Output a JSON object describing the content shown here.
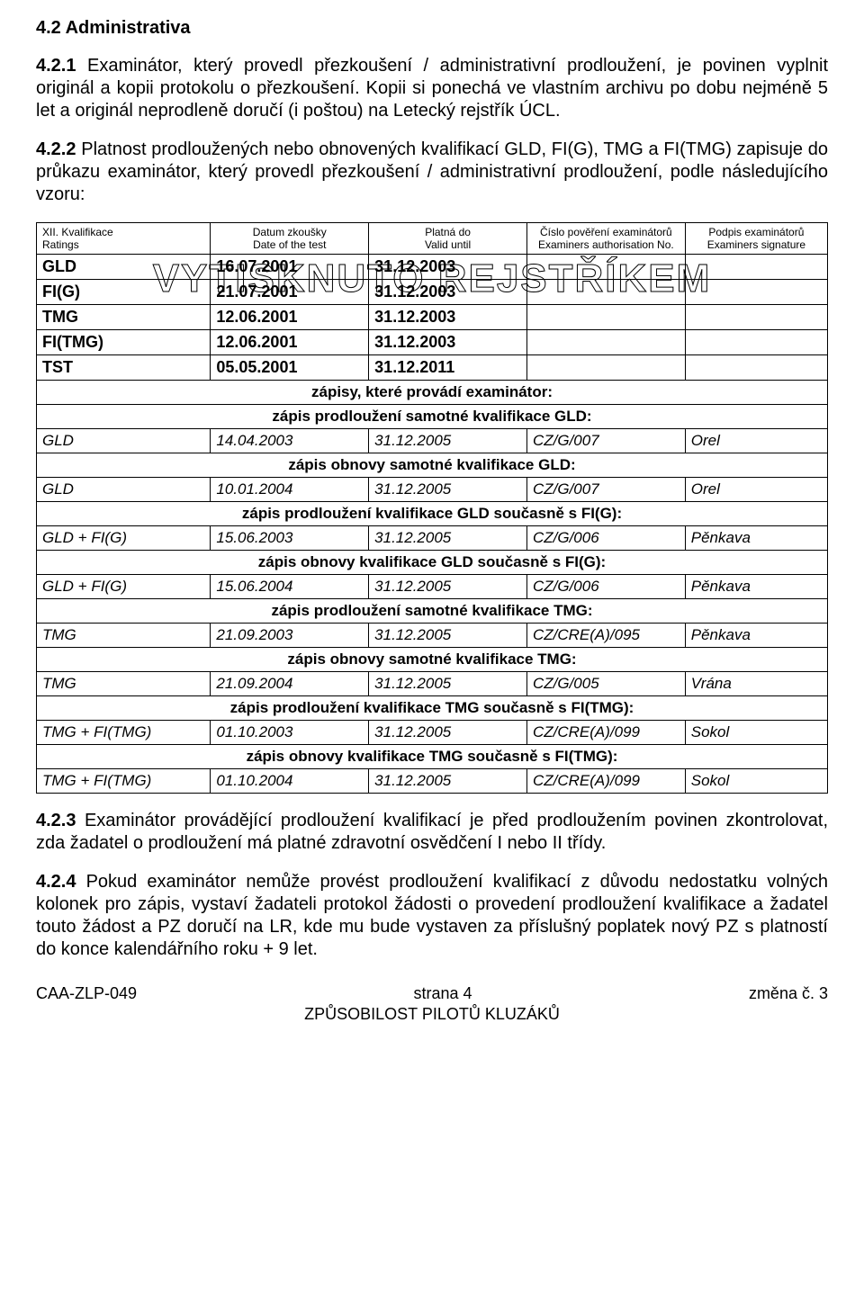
{
  "section_head": "4.2 Administrativa",
  "para421": "4.2.1 Examinátor, který provedl přezkoušení / administrativní prodloužení, je povinen vyplnit originál a kopii protokolu o přezkoušení. Kopii si ponechá ve vlastním archivu po dobu nejméně 5 let a originál neprodleně doručí (i poštou) na Letecký rejstřík ÚCL.",
  "para422": "4.2.2 Platnost prodloužených nebo obnovených kvalifikací GLD, FI(G), TMG a FI(TMG) zapisuje do průkazu examinátor, který provedl přezkoušení / administrativní prodloužení, podle následujícího vzoru:",
  "para421_bold": "4.2.1",
  "para422_bold": "4.2.2",
  "overlay": "VYTISKNUTO  REJSTŘÍKEM",
  "table": {
    "header": {
      "c1a": "XII. Kvalifikace",
      "c1b": "Ratings",
      "c2a": "Datum zkoušky",
      "c2b": "Date of the test",
      "c3a": "Platná do",
      "c3b": "Valid until",
      "c4a": "Číslo pověření examinátorů",
      "c4b": "Examiners authorisation No.",
      "c5a": "Podpis examinátorů",
      "c5b": "Examiners signature"
    },
    "top_rows": [
      {
        "c1": "GLD",
        "c2": "16.07.2001",
        "c3": "31.12.2003",
        "c4": "",
        "c5": ""
      },
      {
        "c1": "FI(G)",
        "c2": "21.07.2001",
        "c3": "31.12.2003",
        "c4": "",
        "c5": ""
      },
      {
        "c1": "TMG",
        "c2": "12.06.2001",
        "c3": "31.12.2003",
        "c4": "",
        "c5": ""
      },
      {
        "c1": "FI(TMG)",
        "c2": "12.06.2001",
        "c3": "31.12.2003",
        "c4": "",
        "c5": ""
      },
      {
        "c1": "TST",
        "c2": "05.05.2001",
        "c3": "31.12.2011",
        "c4": "",
        "c5": ""
      }
    ],
    "sections": [
      {
        "title_first": "zápisy, které provádí examinátor:",
        "title": "zápis prodloužení samotné kvalifikace GLD:",
        "row": {
          "c1": "GLD",
          "c2": "14.04.2003",
          "c3": "31.12.2005",
          "c4": "CZ/G/007",
          "c5": "Orel"
        }
      },
      {
        "title": "zápis obnovy samotné kvalifikace GLD:",
        "row": {
          "c1": "GLD",
          "c2": "10.01.2004",
          "c3": "31.12.2005",
          "c4": "CZ/G/007",
          "c5": "Orel"
        }
      },
      {
        "title": "zápis prodloužení kvalifikace GLD současně s FI(G):",
        "row": {
          "c1": "GLD + FI(G)",
          "c2": "15.06.2003",
          "c3": "31.12.2005",
          "c4": "CZ/G/006",
          "c5": "Pěnkava"
        }
      },
      {
        "title": "zápis obnovy kvalifikace GLD současně s FI(G):",
        "row": {
          "c1": "GLD + FI(G)",
          "c2": "15.06.2004",
          "c3": "31.12.2005",
          "c4": "CZ/G/006",
          "c5": "Pěnkava"
        }
      },
      {
        "title": "zápis prodloužení samotné kvalifikace TMG:",
        "row": {
          "c1": "TMG",
          "c2": "21.09.2003",
          "c3": "31.12.2005",
          "c4": "CZ/CRE(A)/095",
          "c5": "Pěnkava"
        }
      },
      {
        "title": "zápis obnovy samotné kvalifikace TMG:",
        "row": {
          "c1": "TMG",
          "c2": "21.09.2004",
          "c3": "31.12.2005",
          "c4": "CZ/G/005",
          "c5": "Vrána"
        }
      },
      {
        "title": "zápis prodloužení kvalifikace TMG současně s FI(TMG):",
        "row": {
          "c1": "TMG + FI(TMG)",
          "c2": "01.10.2003",
          "c3": "31.12.2005",
          "c4": "CZ/CRE(A)/099",
          "c5": "Sokol"
        }
      },
      {
        "title": "zápis obnovy kvalifikace TMG současně s FI(TMG):",
        "row": {
          "c1": "TMG + FI(TMG)",
          "c2": "01.10.2004",
          "c3": "31.12.2005",
          "c4": "CZ/CRE(A)/099",
          "c5": "Sokol"
        }
      }
    ]
  },
  "para423": "4.2.3 Examinátor provádějící prodloužení kvalifikací je před prodloužením povinen zkontrolovat, zda žadatel o prodloužení má platné zdravotní osvědčení I nebo II třídy.",
  "para423_bold": "4.2.3",
  "para424": "4.2.4 Pokud examinátor nemůže provést prodloužení kvalifikací z důvodu nedostatku volných kolonek pro zápis, vystaví žadateli protokol žádosti o provedení prodloužení kvalifikace a žadatel touto žádost a PZ doručí na LR, kde mu bude vystaven za příslušný poplatek nový PZ s platností do konce kalendářního roku + 9 let.",
  "para424_bold": "4.2.4",
  "footer": {
    "left": "CAA-ZLP-049",
    "center_top": "strana   4",
    "right": "změna č. 3",
    "center_bottom": "ZPŮSOBILOST PILOTŮ KLUZÁKŮ"
  }
}
